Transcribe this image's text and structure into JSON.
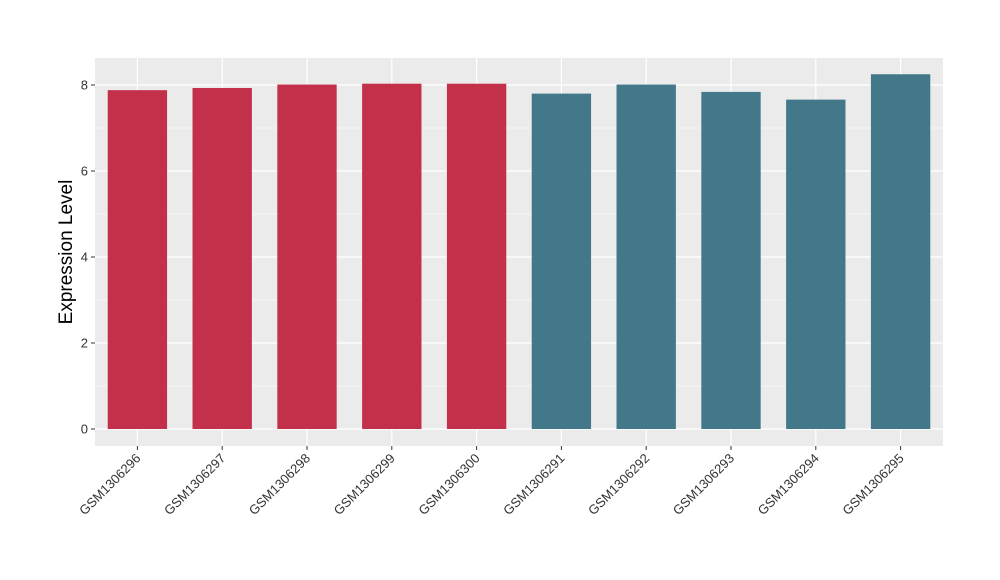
{
  "chart_data": {
    "type": "bar",
    "categories": [
      "GSM1306296",
      "GSM1306297",
      "GSM1306298",
      "GSM1306299",
      "GSM1306300",
      "GSM1306291",
      "GSM1306292",
      "GSM1306293",
      "GSM1306294",
      "GSM1306295"
    ],
    "values": [
      7.88,
      7.93,
      8.01,
      8.03,
      8.03,
      7.8,
      8.01,
      7.84,
      7.66,
      8.25
    ],
    "groups": [
      "a",
      "a",
      "a",
      "a",
      "a",
      "b",
      "b",
      "b",
      "b",
      "b"
    ],
    "group_colors": {
      "a": "#c33049",
      "b": "#42788a"
    },
    "title": "",
    "xlabel": "",
    "ylabel": "Expression Level",
    "ylim": [
      0,
      8.6
    ],
    "yticks": [
      0,
      2,
      4,
      6,
      8
    ],
    "grid": true,
    "legend": "none",
    "panel_color": "#ebebeb",
    "grid_color": "#ffffff"
  }
}
